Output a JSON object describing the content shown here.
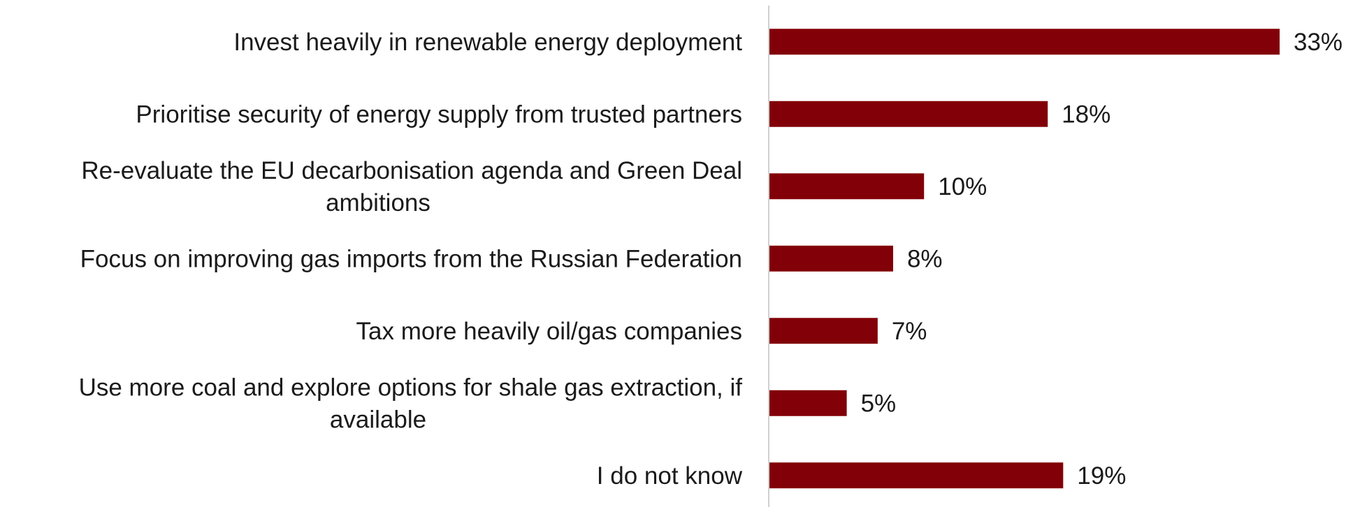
{
  "colors": {
    "bar": "#820007",
    "axis": "#d0d0d0",
    "text": "#1a1a1a",
    "background": "#ffffff"
  },
  "chart_data": {
    "type": "bar",
    "orientation": "horizontal",
    "categories": [
      "Invest heavily in renewable energy deployment",
      "Prioritise security of energy supply from trusted partners",
      "Re-evaluate the EU decarbonisation agenda and Green Deal ambitions",
      "Focus on improving gas imports from the Russian Federation",
      "Tax more heavily oil/gas companies",
      "Use more coal and explore options for shale gas extraction, if available",
      "I do not know"
    ],
    "category_label_lines": [
      [
        "Invest heavily in renewable energy deployment"
      ],
      [
        "Prioritise security of energy supply from trusted partners"
      ],
      [
        "Re-evaluate the EU decarbonisation agenda and Green Deal",
        "ambitions"
      ],
      [
        "Focus on improving gas imports from the Russian Federation"
      ],
      [
        "Tax more heavily oil/gas companies"
      ],
      [
        "Use more coal and explore options for shale gas extraction, if",
        "available"
      ],
      [
        "I do not know"
      ]
    ],
    "values": [
      33,
      18,
      10,
      8,
      7,
      5,
      19
    ],
    "value_labels": [
      "33%",
      "18%",
      "10%",
      "8%",
      "7%",
      "5%",
      "19%"
    ],
    "unit": "%",
    "title": "",
    "xlabel": "",
    "ylabel": "",
    "xlim": [
      0,
      33
    ],
    "grid": false,
    "legend": "none"
  }
}
